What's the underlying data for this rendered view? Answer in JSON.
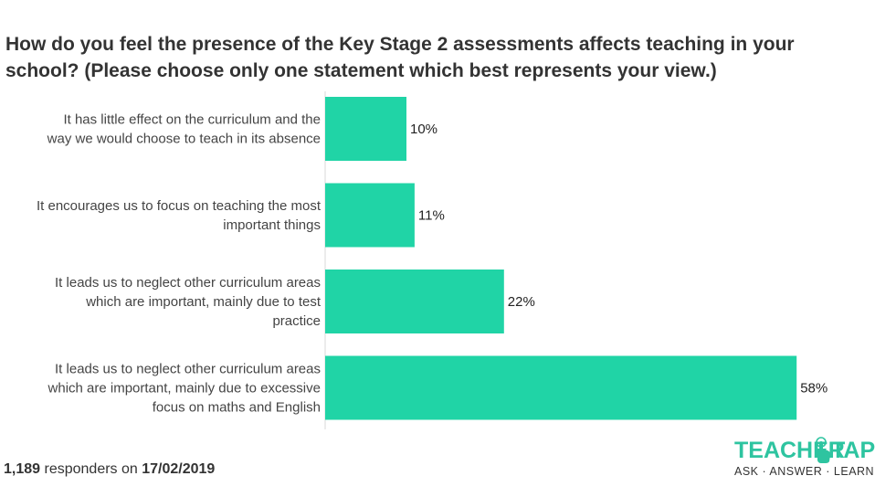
{
  "title": {
    "line1": "How do you feel the presence of the Key Stage 2 assessments affects teaching in your",
    "line2": "school? (Please choose only one statement which best represents your view.)"
  },
  "chart_data": {
    "type": "bar",
    "orientation": "horizontal",
    "categories": [
      [
        "It has little effect on the curriculum and the",
        "way we would choose to teach in its absence"
      ],
      [
        "It encourages us to focus on teaching the most",
        "important things"
      ],
      [
        "It leads us to neglect other curriculum areas",
        "which are important, mainly due to test",
        "practice"
      ],
      [
        "It leads us to neglect other curriculum areas",
        "which are important, mainly due to excessive",
        "focus on maths and English"
      ]
    ],
    "values": [
      10,
      11,
      22,
      58
    ],
    "value_labels": [
      "10%",
      "11%",
      "22%",
      "58%"
    ],
    "xlim": [
      0,
      60
    ],
    "bar_color": "#20d4a6",
    "grid": false
  },
  "footer": {
    "count": "1,189",
    "text": "responders on",
    "date": "17/02/2019"
  },
  "logo": {
    "word_left": "TEACHER",
    "word_right": "TAPP",
    "tagline": "ASK · ANSWER · LEARN",
    "accent": "#2ec4a0"
  }
}
